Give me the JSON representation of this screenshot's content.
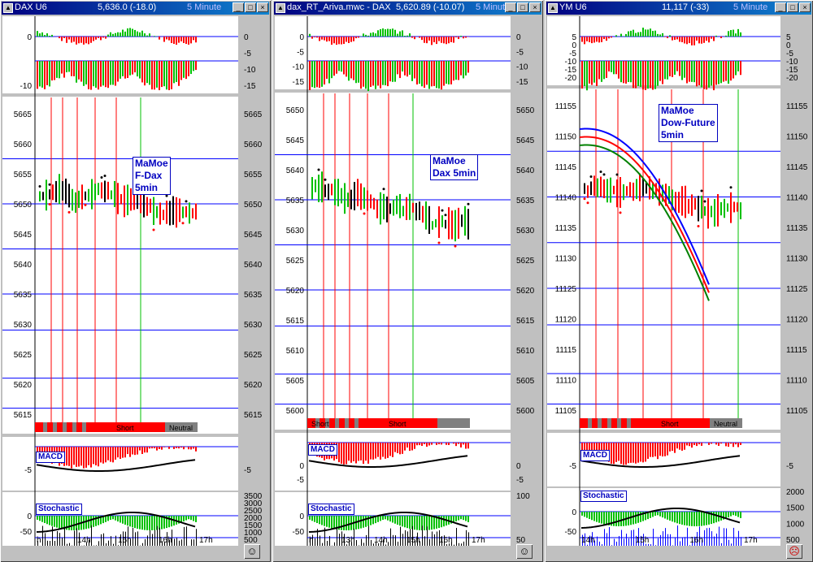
{
  "colors": {
    "up": "#00c000",
    "down": "#ff0000",
    "neutral": "#000000",
    "line": "#0000ff"
  },
  "windows": [
    {
      "title": "DAX U6",
      "quote": "5,636.0  (-18.0)",
      "interval": "5 Minute",
      "label": [
        "MaMoe",
        "F-Dax",
        "5min"
      ],
      "price_ticks": [
        "5665",
        "5660",
        "5655",
        "5650",
        "5645",
        "5640",
        "5635",
        "5630",
        "5625",
        "5620",
        "5615"
      ],
      "top_ticks_left": [
        "0",
        "-10"
      ],
      "top_ticks_right": [
        "0",
        "-5",
        "-10",
        "-15"
      ],
      "band": {
        "short": "Short",
        "neutral": "Neutral"
      },
      "macd_label": "MACD",
      "macd_ticks_left": [
        "-5"
      ],
      "macd_ticks_right": [
        "-5"
      ],
      "stoch_label": "Stochastic",
      "stoch_ticks_left": [
        "0",
        "-50"
      ],
      "stoch_ticks_right": [
        "3500",
        "3000",
        "2500",
        "2000",
        "1500",
        "1000",
        "500"
      ],
      "time_ticks": [
        "h",
        "14h",
        "15h",
        "16h",
        "17h"
      ],
      "status_icon": "smiley-icon"
    },
    {
      "title": "dax_RT_Ariva.mwc - DAX",
      "quote": "5,620.89  (-10.07)",
      "interval": "5 Minute",
      "label": [
        "MaMoe",
        "Dax 5min"
      ],
      "price_ticks": [
        "5650",
        "5645",
        "5640",
        "5635",
        "5630",
        "5625",
        "5620",
        "5615",
        "5610",
        "5605",
        "5600"
      ],
      "top_ticks_left": [
        "0",
        "-5",
        "-10",
        "-15"
      ],
      "top_ticks_right": [
        "0",
        "-5",
        "-10",
        "-15"
      ],
      "band": {
        "short": "Short",
        "short2": "Short"
      },
      "macd_label": "MACD",
      "macd_ticks_left": [
        "0",
        "-5"
      ],
      "macd_ticks_right": [
        "0",
        "-5"
      ],
      "stoch_label": "Stochastic",
      "stoch_ticks_left": [
        "0",
        "-50"
      ],
      "stoch_ticks_right": [
        "100",
        "50"
      ],
      "time_ticks": [
        "h",
        "13h",
        "14h",
        "15h",
        "16h",
        "17h"
      ],
      "status_icon": "smiley-icon"
    },
    {
      "title": "YM U6",
      "quote": "11,117  (-33)",
      "interval": "5 Minute",
      "label": [
        "MaMoe",
        "Dow-Future",
        "5min"
      ],
      "price_ticks": [
        "11155",
        "11150",
        "11145",
        "11140",
        "11135",
        "11130",
        "11125",
        "11120",
        "11115",
        "11110",
        "11105"
      ],
      "top_ticks_left": [
        "5",
        "0",
        "-5",
        "-10",
        "-15",
        "-20"
      ],
      "top_ticks_right": [
        "5",
        "0",
        "-5",
        "-10",
        "-15",
        "-20"
      ],
      "band": {
        "short": "Short",
        "neutral": "Neutral"
      },
      "macd_label": "MACD",
      "macd_ticks_left": [
        "-5"
      ],
      "macd_ticks_right": [
        "-5"
      ],
      "stoch_label": "Stochastic",
      "stoch_ticks_left": [
        "0",
        "-50"
      ],
      "stoch_ticks_right": [
        "2000",
        "1500",
        "1000",
        "500"
      ],
      "time_ticks": [
        "14h",
        "15h",
        "16h",
        "17h"
      ],
      "status_icon": "sad-icon"
    }
  ]
}
